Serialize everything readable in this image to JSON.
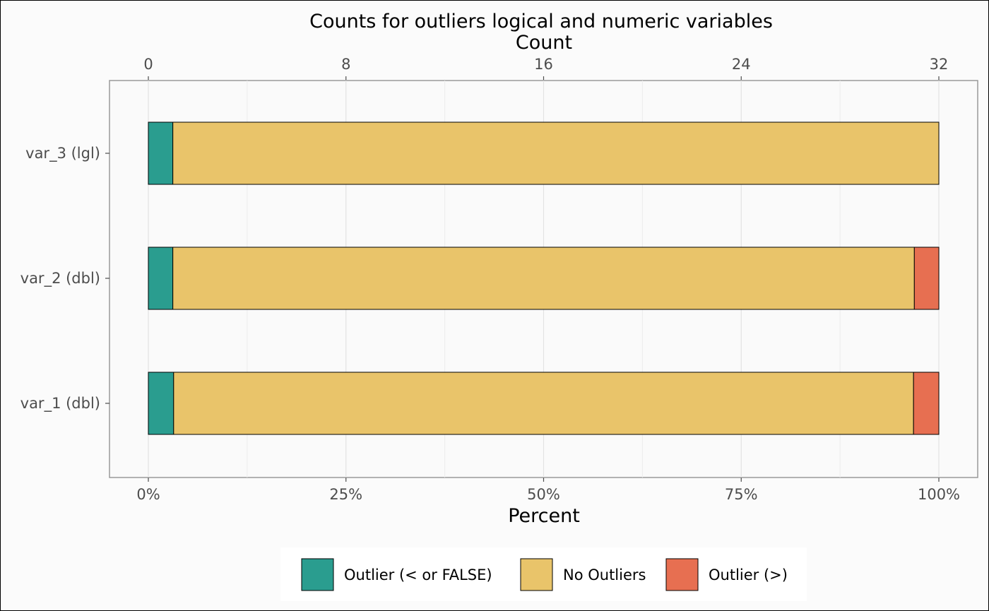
{
  "chart_data": {
    "type": "bar",
    "orientation": "horizontal",
    "stacked": true,
    "title": "Counts for outliers logical and numeric variables",
    "secondary_axis_label": "Count",
    "xlabel": "Percent",
    "ylabel": "",
    "xlim": [
      0,
      100
    ],
    "x_ticks": [
      "0%",
      "25%",
      "50%",
      "75%",
      "100%"
    ],
    "x_tick_values": [
      0,
      25,
      50,
      75,
      100
    ],
    "secondary_ticks": [
      "0",
      "8",
      "16",
      "24",
      "32"
    ],
    "secondary_tick_values": [
      0,
      8,
      16,
      24,
      32
    ],
    "secondary_max": 32,
    "categories": [
      "var_3 (lgl)",
      "var_2 (dbl)",
      "var_1 (dbl)"
    ],
    "series": [
      {
        "name": "Outlier (< or FALSE)",
        "color": "#2a9d8f",
        "values": [
          3.1,
          3.1,
          3.2
        ]
      },
      {
        "name": "No Outliers",
        "color": "#e9c46a",
        "values": [
          96.9,
          93.8,
          93.6
        ]
      },
      {
        "name": "Outlier (>)",
        "color": "#e76f51",
        "values": [
          0,
          3.1,
          3.2
        ]
      }
    ],
    "legend_position": "bottom",
    "grid": true
  }
}
